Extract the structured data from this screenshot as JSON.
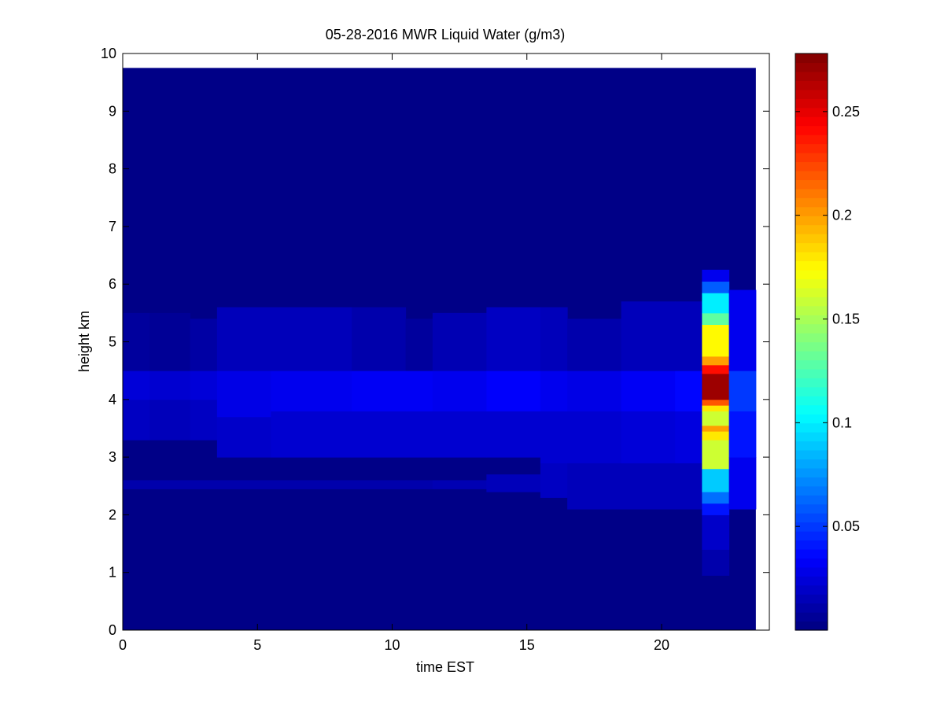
{
  "chart_data": {
    "type": "heatmap",
    "title": "05-28-2016 MWR Liquid Water (g/m3)",
    "xlabel": "time EST",
    "ylabel": "height km",
    "xlim": [
      0,
      24
    ],
    "ylim": [
      0,
      10
    ],
    "xticks": [
      0,
      5,
      10,
      15,
      20
    ],
    "yticks": [
      0,
      1,
      2,
      3,
      4,
      5,
      6,
      7,
      8,
      9,
      10
    ],
    "colormap": "jet",
    "clim": [
      0,
      0.278
    ],
    "colorbar_ticks": [
      0.05,
      0.1,
      0.15,
      0.2,
      0.25
    ],
    "grid": false,
    "data_extent": {
      "x": [
        0,
        23.5
      ],
      "y": [
        0,
        9.75
      ]
    },
    "background_value": 0.002,
    "time_columns": [
      {
        "x0": 0,
        "x1": 1,
        "layers": [
          {
            "y0": 2.45,
            "y1": 2.6,
            "v": 0.012
          },
          {
            "y0": 3.3,
            "y1": 4.0,
            "v": 0.018
          },
          {
            "y0": 4.0,
            "y1": 4.5,
            "v": 0.024
          },
          {
            "y0": 4.5,
            "y1": 5.5,
            "v": 0.008
          }
        ]
      },
      {
        "x0": 1,
        "x1": 2.5,
        "layers": [
          {
            "y0": 2.45,
            "y1": 2.6,
            "v": 0.012
          },
          {
            "y0": 3.3,
            "y1": 4.0,
            "v": 0.016
          },
          {
            "y0": 4.0,
            "y1": 4.5,
            "v": 0.022
          },
          {
            "y0": 4.5,
            "y1": 5.5,
            "v": 0.006
          }
        ]
      },
      {
        "x0": 2.5,
        "x1": 3.5,
        "layers": [
          {
            "y0": 2.45,
            "y1": 2.6,
            "v": 0.012
          },
          {
            "y0": 3.3,
            "y1": 4.0,
            "v": 0.018
          },
          {
            "y0": 4.0,
            "y1": 4.5,
            "v": 0.024
          },
          {
            "y0": 4.5,
            "y1": 5.4,
            "v": 0.01
          }
        ]
      },
      {
        "x0": 3.5,
        "x1": 5.5,
        "layers": [
          {
            "y0": 2.45,
            "y1": 2.6,
            "v": 0.012
          },
          {
            "y0": 3.0,
            "y1": 3.7,
            "v": 0.02
          },
          {
            "y0": 3.7,
            "y1": 4.5,
            "v": 0.028
          },
          {
            "y0": 4.5,
            "y1": 5.6,
            "v": 0.016
          }
        ]
      },
      {
        "x0": 5.5,
        "x1": 8.5,
        "layers": [
          {
            "y0": 2.45,
            "y1": 2.6,
            "v": 0.012
          },
          {
            "y0": 3.0,
            "y1": 3.8,
            "v": 0.022
          },
          {
            "y0": 3.8,
            "y1": 4.5,
            "v": 0.03
          },
          {
            "y0": 4.5,
            "y1": 5.6,
            "v": 0.016
          }
        ]
      },
      {
        "x0": 8.5,
        "x1": 10.5,
        "layers": [
          {
            "y0": 2.45,
            "y1": 2.6,
            "v": 0.012
          },
          {
            "y0": 3.0,
            "y1": 3.8,
            "v": 0.022
          },
          {
            "y0": 3.8,
            "y1": 4.5,
            "v": 0.032
          },
          {
            "y0": 4.5,
            "y1": 5.6,
            "v": 0.012
          }
        ]
      },
      {
        "x0": 10.5,
        "x1": 11.5,
        "layers": [
          {
            "y0": 2.45,
            "y1": 2.6,
            "v": 0.012
          },
          {
            "y0": 3.0,
            "y1": 3.8,
            "v": 0.022
          },
          {
            "y0": 3.8,
            "y1": 4.5,
            "v": 0.032
          },
          {
            "y0": 4.5,
            "y1": 5.4,
            "v": 0.008
          }
        ]
      },
      {
        "x0": 11.5,
        "x1": 13.5,
        "layers": [
          {
            "y0": 2.45,
            "y1": 2.6,
            "v": 0.014
          },
          {
            "y0": 3.0,
            "y1": 3.8,
            "v": 0.022
          },
          {
            "y0": 3.8,
            "y1": 4.5,
            "v": 0.03
          },
          {
            "y0": 4.5,
            "y1": 5.5,
            "v": 0.014
          }
        ]
      },
      {
        "x0": 13.5,
        "x1": 15.5,
        "layers": [
          {
            "y0": 2.4,
            "y1": 2.7,
            "v": 0.016
          },
          {
            "y0": 3.0,
            "y1": 3.8,
            "v": 0.022
          },
          {
            "y0": 3.8,
            "y1": 4.5,
            "v": 0.034
          },
          {
            "y0": 4.5,
            "y1": 5.6,
            "v": 0.018
          }
        ]
      },
      {
        "x0": 15.5,
        "x1": 16.5,
        "layers": [
          {
            "y0": 2.3,
            "y1": 2.9,
            "v": 0.018
          },
          {
            "y0": 2.9,
            "y1": 3.8,
            "v": 0.022
          },
          {
            "y0": 3.8,
            "y1": 4.5,
            "v": 0.03
          },
          {
            "y0": 4.5,
            "y1": 5.6,
            "v": 0.016
          }
        ]
      },
      {
        "x0": 16.5,
        "x1": 18.5,
        "layers": [
          {
            "y0": 2.1,
            "y1": 2.9,
            "v": 0.016
          },
          {
            "y0": 2.9,
            "y1": 3.8,
            "v": 0.022
          },
          {
            "y0": 3.8,
            "y1": 4.5,
            "v": 0.028
          },
          {
            "y0": 4.5,
            "y1": 5.4,
            "v": 0.012
          }
        ]
      },
      {
        "x0": 18.5,
        "x1": 20.5,
        "layers": [
          {
            "y0": 2.1,
            "y1": 2.9,
            "v": 0.016
          },
          {
            "y0": 2.9,
            "y1": 3.8,
            "v": 0.024
          },
          {
            "y0": 3.8,
            "y1": 4.5,
            "v": 0.032
          },
          {
            "y0": 4.5,
            "y1": 5.7,
            "v": 0.016
          }
        ]
      },
      {
        "x0": 20.5,
        "x1": 21.5,
        "layers": [
          {
            "y0": 2.1,
            "y1": 2.9,
            "v": 0.016
          },
          {
            "y0": 2.9,
            "y1": 3.8,
            "v": 0.026
          },
          {
            "y0": 3.8,
            "y1": 4.5,
            "v": 0.036
          },
          {
            "y0": 4.5,
            "y1": 5.7,
            "v": 0.016
          }
        ]
      },
      {
        "x0": 21.5,
        "x1": 22.5,
        "layers": [
          {
            "y0": 0.95,
            "y1": 1.4,
            "v": 0.012
          },
          {
            "y0": 1.4,
            "y1": 2.0,
            "v": 0.02
          },
          {
            "y0": 2.0,
            "y1": 2.2,
            "v": 0.04
          },
          {
            "y0": 2.2,
            "y1": 2.4,
            "v": 0.065
          },
          {
            "y0": 2.4,
            "y1": 2.8,
            "v": 0.09
          },
          {
            "y0": 2.8,
            "y1": 3.3,
            "v": 0.16
          },
          {
            "y0": 3.3,
            "y1": 3.45,
            "v": 0.18
          },
          {
            "y0": 3.45,
            "y1": 3.55,
            "v": 0.2
          },
          {
            "y0": 3.55,
            "y1": 3.8,
            "v": 0.16
          },
          {
            "y0": 3.8,
            "y1": 3.9,
            "v": 0.18
          },
          {
            "y0": 3.9,
            "y1": 4.0,
            "v": 0.22
          },
          {
            "y0": 4.0,
            "y1": 4.45,
            "v": 0.27
          },
          {
            "y0": 4.45,
            "y1": 4.6,
            "v": 0.24
          },
          {
            "y0": 4.6,
            "y1": 4.75,
            "v": 0.2
          },
          {
            "y0": 4.75,
            "y1": 5.3,
            "v": 0.175
          },
          {
            "y0": 5.3,
            "y1": 5.5,
            "v": 0.13
          },
          {
            "y0": 5.5,
            "y1": 5.85,
            "v": 0.1
          },
          {
            "y0": 5.85,
            "y1": 6.05,
            "v": 0.06
          },
          {
            "y0": 6.05,
            "y1": 6.25,
            "v": 0.03
          }
        ]
      },
      {
        "x0": 22.5,
        "x1": 23.5,
        "layers": [
          {
            "y0": 2.1,
            "y1": 3.0,
            "v": 0.03
          },
          {
            "y0": 3.0,
            "y1": 3.8,
            "v": 0.04
          },
          {
            "y0": 3.8,
            "y1": 4.5,
            "v": 0.05
          },
          {
            "y0": 4.5,
            "y1": 5.9,
            "v": 0.03
          }
        ]
      }
    ]
  }
}
